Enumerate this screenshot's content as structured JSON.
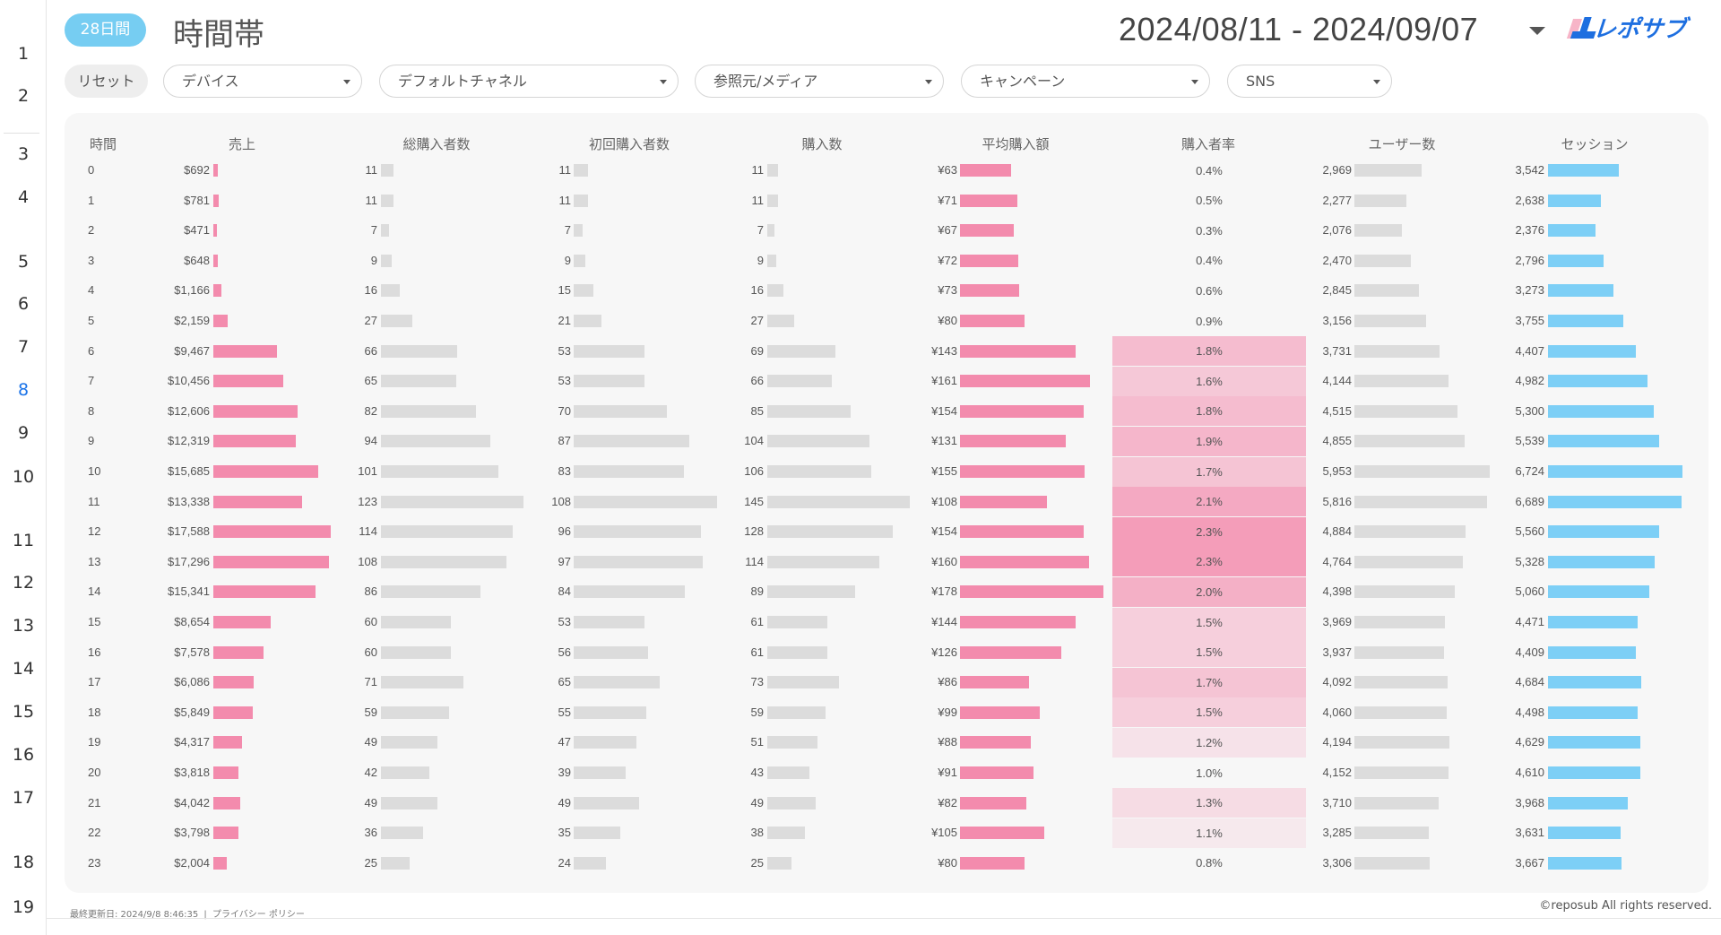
{
  "header": {
    "period_badge": "28日間",
    "title": "時間帯",
    "date_range": "2024/08/11 - 2024/09/07",
    "logo_icon": "reposub-logo",
    "logo_text": "レポサブ"
  },
  "rail": {
    "pages": [
      "1",
      "2",
      "3",
      "4",
      "5",
      "6",
      "7",
      "8",
      "9",
      "10",
      "11",
      "12",
      "13",
      "14",
      "15",
      "16",
      "17",
      "18",
      "19"
    ],
    "active": "8"
  },
  "filters": {
    "reset_label": "リセット",
    "device": "デバイス",
    "channel": "デフォルトチャネル",
    "source": "参照元/メディア",
    "campaign": "キャンペーン",
    "sns": "SNS"
  },
  "table": {
    "headers": [
      "時間",
      "売上",
      "総購入者数",
      "初回購入者数",
      "購入数",
      "平均購入額",
      "購入者率",
      "ユーザー数",
      "セッション"
    ],
    "rows": [
      {
        "hour": "0",
        "sales": "$692",
        "sales_v": 692,
        "buyers": "11",
        "buyers_v": 11,
        "first": "11",
        "first_v": 11,
        "purchases": "11",
        "purchases_v": 11,
        "avg": "¥63",
        "avg_v": 63,
        "rate": "0.4%",
        "rate_v": 0.4,
        "users": "2,969",
        "users_v": 2969,
        "sessions": "3,542",
        "sessions_v": 3542
      },
      {
        "hour": "1",
        "sales": "$781",
        "sales_v": 781,
        "buyers": "11",
        "buyers_v": 11,
        "first": "11",
        "first_v": 11,
        "purchases": "11",
        "purchases_v": 11,
        "avg": "¥71",
        "avg_v": 71,
        "rate": "0.5%",
        "rate_v": 0.5,
        "users": "2,277",
        "users_v": 2277,
        "sessions": "2,638",
        "sessions_v": 2638
      },
      {
        "hour": "2",
        "sales": "$471",
        "sales_v": 471,
        "buyers": "7",
        "buyers_v": 7,
        "first": "7",
        "first_v": 7,
        "purchases": "7",
        "purchases_v": 7,
        "avg": "¥67",
        "avg_v": 67,
        "rate": "0.3%",
        "rate_v": 0.3,
        "users": "2,076",
        "users_v": 2076,
        "sessions": "2,376",
        "sessions_v": 2376
      },
      {
        "hour": "3",
        "sales": "$648",
        "sales_v": 648,
        "buyers": "9",
        "buyers_v": 9,
        "first": "9",
        "first_v": 9,
        "purchases": "9",
        "purchases_v": 9,
        "avg": "¥72",
        "avg_v": 72,
        "rate": "0.4%",
        "rate_v": 0.4,
        "users": "2,470",
        "users_v": 2470,
        "sessions": "2,796",
        "sessions_v": 2796
      },
      {
        "hour": "4",
        "sales": "$1,166",
        "sales_v": 1166,
        "buyers": "16",
        "buyers_v": 16,
        "first": "15",
        "first_v": 15,
        "purchases": "16",
        "purchases_v": 16,
        "avg": "¥73",
        "avg_v": 73,
        "rate": "0.6%",
        "rate_v": 0.6,
        "users": "2,845",
        "users_v": 2845,
        "sessions": "3,273",
        "sessions_v": 3273
      },
      {
        "hour": "5",
        "sales": "$2,159",
        "sales_v": 2159,
        "buyers": "27",
        "buyers_v": 27,
        "first": "21",
        "first_v": 21,
        "purchases": "27",
        "purchases_v": 27,
        "avg": "¥80",
        "avg_v": 80,
        "rate": "0.9%",
        "rate_v": 0.9,
        "users": "3,156",
        "users_v": 3156,
        "sessions": "3,755",
        "sessions_v": 3755
      },
      {
        "hour": "6",
        "sales": "$9,467",
        "sales_v": 9467,
        "buyers": "66",
        "buyers_v": 66,
        "first": "53",
        "first_v": 53,
        "purchases": "69",
        "purchases_v": 69,
        "avg": "¥143",
        "avg_v": 143,
        "rate": "1.8%",
        "rate_v": 1.8,
        "users": "3,731",
        "users_v": 3731,
        "sessions": "4,407",
        "sessions_v": 4407
      },
      {
        "hour": "7",
        "sales": "$10,456",
        "sales_v": 10456,
        "buyers": "65",
        "buyers_v": 65,
        "first": "53",
        "first_v": 53,
        "purchases": "66",
        "purchases_v": 66,
        "avg": "¥161",
        "avg_v": 161,
        "rate": "1.6%",
        "rate_v": 1.6,
        "users": "4,144",
        "users_v": 4144,
        "sessions": "4,982",
        "sessions_v": 4982
      },
      {
        "hour": "8",
        "sales": "$12,606",
        "sales_v": 12606,
        "buyers": "82",
        "buyers_v": 82,
        "first": "70",
        "first_v": 70,
        "purchases": "85",
        "purchases_v": 85,
        "avg": "¥154",
        "avg_v": 154,
        "rate": "1.8%",
        "rate_v": 1.8,
        "users": "4,515",
        "users_v": 4515,
        "sessions": "5,300",
        "sessions_v": 5300
      },
      {
        "hour": "9",
        "sales": "$12,319",
        "sales_v": 12319,
        "buyers": "94",
        "buyers_v": 94,
        "first": "87",
        "first_v": 87,
        "purchases": "104",
        "purchases_v": 104,
        "avg": "¥131",
        "avg_v": 131,
        "rate": "1.9%",
        "rate_v": 1.9,
        "users": "4,855",
        "users_v": 4855,
        "sessions": "5,539",
        "sessions_v": 5539
      },
      {
        "hour": "10",
        "sales": "$15,685",
        "sales_v": 15685,
        "buyers": "101",
        "buyers_v": 101,
        "first": "83",
        "first_v": 83,
        "purchases": "106",
        "purchases_v": 106,
        "avg": "¥155",
        "avg_v": 155,
        "rate": "1.7%",
        "rate_v": 1.7,
        "users": "5,953",
        "users_v": 5953,
        "sessions": "6,724",
        "sessions_v": 6724
      },
      {
        "hour": "11",
        "sales": "$13,338",
        "sales_v": 13338,
        "buyers": "123",
        "buyers_v": 123,
        "first": "108",
        "first_v": 108,
        "purchases": "145",
        "purchases_v": 145,
        "avg": "¥108",
        "avg_v": 108,
        "rate": "2.1%",
        "rate_v": 2.1,
        "users": "5,816",
        "users_v": 5816,
        "sessions": "6,689",
        "sessions_v": 6689
      },
      {
        "hour": "12",
        "sales": "$17,588",
        "sales_v": 17588,
        "buyers": "114",
        "buyers_v": 114,
        "first": "96",
        "first_v": 96,
        "purchases": "128",
        "purchases_v": 128,
        "avg": "¥154",
        "avg_v": 154,
        "rate": "2.3%",
        "rate_v": 2.3,
        "users": "4,884",
        "users_v": 4884,
        "sessions": "5,560",
        "sessions_v": 5560
      },
      {
        "hour": "13",
        "sales": "$17,296",
        "sales_v": 17296,
        "buyers": "108",
        "buyers_v": 108,
        "first": "97",
        "first_v": 97,
        "purchases": "114",
        "purchases_v": 114,
        "avg": "¥160",
        "avg_v": 160,
        "rate": "2.3%",
        "rate_v": 2.3,
        "users": "4,764",
        "users_v": 4764,
        "sessions": "5,328",
        "sessions_v": 5328
      },
      {
        "hour": "14",
        "sales": "$15,341",
        "sales_v": 15341,
        "buyers": "86",
        "buyers_v": 86,
        "first": "84",
        "first_v": 84,
        "purchases": "89",
        "purchases_v": 89,
        "avg": "¥178",
        "avg_v": 178,
        "rate": "2.0%",
        "rate_v": 2.0,
        "users": "4,398",
        "users_v": 4398,
        "sessions": "5,060",
        "sessions_v": 5060
      },
      {
        "hour": "15",
        "sales": "$8,654",
        "sales_v": 8654,
        "buyers": "60",
        "buyers_v": 60,
        "first": "53",
        "first_v": 53,
        "purchases": "61",
        "purchases_v": 61,
        "avg": "¥144",
        "avg_v": 144,
        "rate": "1.5%",
        "rate_v": 1.5,
        "users": "3,969",
        "users_v": 3969,
        "sessions": "4,471",
        "sessions_v": 4471
      },
      {
        "hour": "16",
        "sales": "$7,578",
        "sales_v": 7578,
        "buyers": "60",
        "buyers_v": 60,
        "first": "56",
        "first_v": 56,
        "purchases": "61",
        "purchases_v": 61,
        "avg": "¥126",
        "avg_v": 126,
        "rate": "1.5%",
        "rate_v": 1.5,
        "users": "3,937",
        "users_v": 3937,
        "sessions": "4,409",
        "sessions_v": 4409
      },
      {
        "hour": "17",
        "sales": "$6,086",
        "sales_v": 6086,
        "buyers": "71",
        "buyers_v": 71,
        "first": "65",
        "first_v": 65,
        "purchases": "73",
        "purchases_v": 73,
        "avg": "¥86",
        "avg_v": 86,
        "rate": "1.7%",
        "rate_v": 1.7,
        "users": "4,092",
        "users_v": 4092,
        "sessions": "4,684",
        "sessions_v": 4684
      },
      {
        "hour": "18",
        "sales": "$5,849",
        "sales_v": 5849,
        "buyers": "59",
        "buyers_v": 59,
        "first": "55",
        "first_v": 55,
        "purchases": "59",
        "purchases_v": 59,
        "avg": "¥99",
        "avg_v": 99,
        "rate": "1.5%",
        "rate_v": 1.5,
        "users": "4,060",
        "users_v": 4060,
        "sessions": "4,498",
        "sessions_v": 4498
      },
      {
        "hour": "19",
        "sales": "$4,317",
        "sales_v": 4317,
        "buyers": "49",
        "buyers_v": 49,
        "first": "47",
        "first_v": 47,
        "purchases": "51",
        "purchases_v": 51,
        "avg": "¥88",
        "avg_v": 88,
        "rate": "1.2%",
        "rate_v": 1.2,
        "users": "4,194",
        "users_v": 4194,
        "sessions": "4,629",
        "sessions_v": 4629
      },
      {
        "hour": "20",
        "sales": "$3,818",
        "sales_v": 3818,
        "buyers": "42",
        "buyers_v": 42,
        "first": "39",
        "first_v": 39,
        "purchases": "43",
        "purchases_v": 43,
        "avg": "¥91",
        "avg_v": 91,
        "rate": "1.0%",
        "rate_v": 1.0,
        "users": "4,152",
        "users_v": 4152,
        "sessions": "4,610",
        "sessions_v": 4610
      },
      {
        "hour": "21",
        "sales": "$4,042",
        "sales_v": 4042,
        "buyers": "49",
        "buyers_v": 49,
        "first": "49",
        "first_v": 49,
        "purchases": "49",
        "purchases_v": 49,
        "avg": "¥82",
        "avg_v": 82,
        "rate": "1.3%",
        "rate_v": 1.3,
        "users": "3,710",
        "users_v": 3710,
        "sessions": "3,968",
        "sessions_v": 3968
      },
      {
        "hour": "22",
        "sales": "$3,798",
        "sales_v": 3798,
        "buyers": "36",
        "buyers_v": 36,
        "first": "35",
        "first_v": 35,
        "purchases": "38",
        "purchases_v": 38,
        "avg": "¥105",
        "avg_v": 105,
        "rate": "1.1%",
        "rate_v": 1.1,
        "users": "3,285",
        "users_v": 3285,
        "sessions": "3,631",
        "sessions_v": 3631
      },
      {
        "hour": "23",
        "sales": "$2,004",
        "sales_v": 2004,
        "buyers": "25",
        "buyers_v": 25,
        "first": "24",
        "first_v": 24,
        "purchases": "25",
        "purchases_v": 25,
        "avg": "¥80",
        "avg_v": 80,
        "rate": "0.8%",
        "rate_v": 0.8,
        "users": "3,306",
        "users_v": 3306,
        "sessions": "3,667",
        "sessions_v": 3667
      }
    ]
  },
  "colors": {
    "badge": "#76cdf2",
    "pink_bar": "#f38bad",
    "gray_bar": "#dcdcdc",
    "blue_bar": "#7dcff6",
    "rate_heat": "#f38bad",
    "active_page": "#1a73e8"
  },
  "footer": {
    "updated": "最終更新日: 2024/9/8 8:46:35",
    "separator": "|",
    "policy": "プライバシー ポリシー",
    "copyright": "©reposub All rights reserved."
  }
}
